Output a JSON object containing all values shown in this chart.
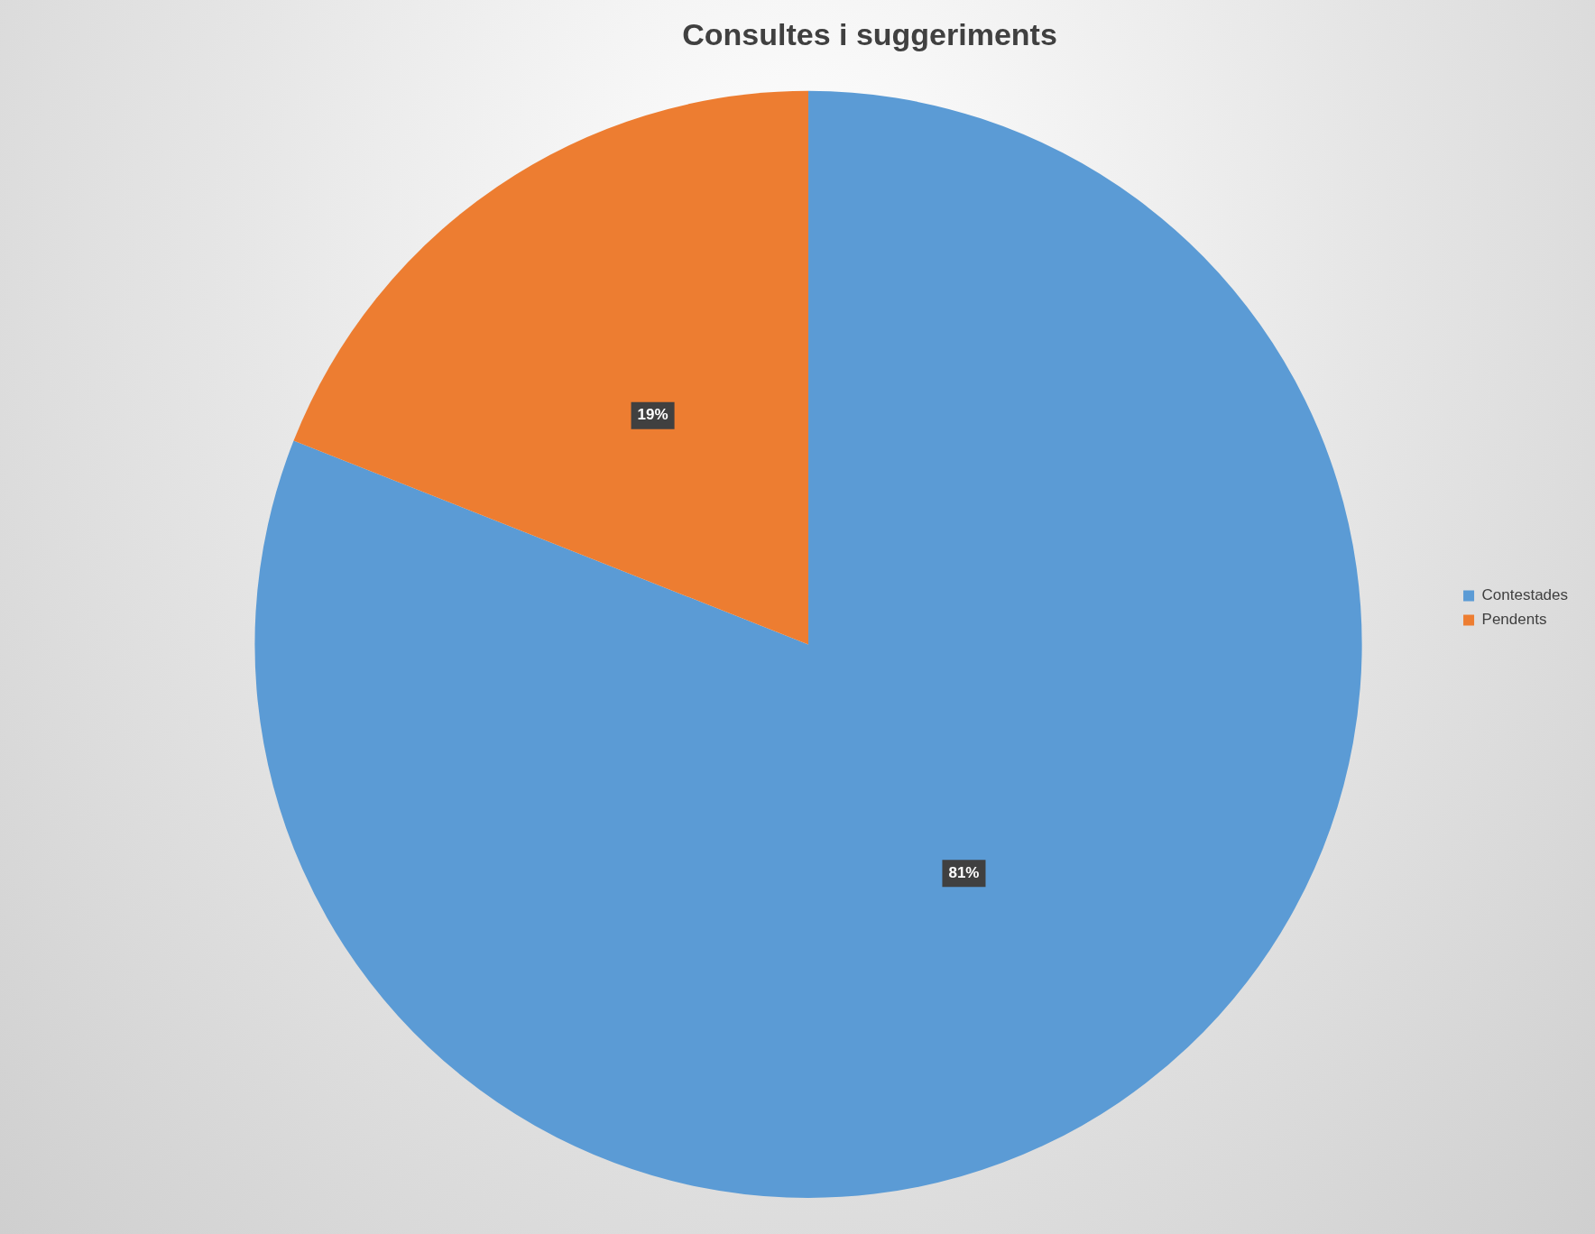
{
  "chart_data": {
    "type": "pie",
    "title": "Consultes i suggeriments",
    "categories": [
      "Contestades",
      "Pendents"
    ],
    "values": [
      81,
      19
    ],
    "colors": [
      "#5b9bd5",
      "#ed7d31"
    ],
    "value_labels": [
      "81%",
      "19%"
    ],
    "legend": "right"
  }
}
